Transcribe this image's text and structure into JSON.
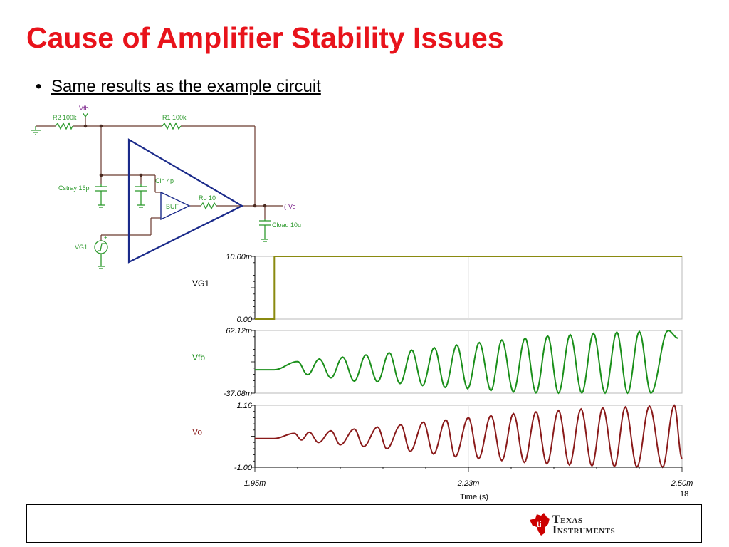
{
  "slide": {
    "title": "Cause of Amplifier Stability Issues",
    "bullet": "Same results as the example circuit",
    "page_number": "18"
  },
  "schematic": {
    "vfb_label": "Vfb",
    "r2_label": "R2 100k",
    "r1_label": "R1 100k",
    "cin_label": "Cin 4p",
    "cstray_label": "Cstray 16p",
    "ro_label": "Ro 10",
    "buf_label": "BUF",
    "vo_label": "Vo",
    "cload_label": "Cload 10u",
    "vg1_label": "VG1",
    "plus_sign": "+",
    "colors": {
      "wire": "#6b3a2e",
      "component": "#2e9a2e",
      "amp": "#1a2a8a",
      "label": "#2e9a2e",
      "net": "#7a1f8a"
    }
  },
  "chart_data": {
    "type": "line",
    "x": {
      "label": "Time (s)",
      "ticks": [
        "1.95m",
        "2.23m",
        "2.50m"
      ],
      "range": [
        1.95,
        2.5
      ]
    },
    "panels": [
      {
        "name": "VG1",
        "color": "#8a8a10",
        "ymax_label": "10.00m",
        "ymin_label": "0.00",
        "ylim": [
          0,
          10.0
        ],
        "shape": "step",
        "step_at": 1.975,
        "low": 0.0,
        "high": 10.0
      },
      {
        "name": "Vfb",
        "color": "#1a8f1a",
        "ymax_label": "62.12m",
        "ymin_label": "-37.08m",
        "ylim": [
          -37.08,
          62.12
        ],
        "shape": "growing-oscillation",
        "start_at": 1.975,
        "baseline": 0.0,
        "peaks": [
          {
            "t": 2.005,
            "v": 13.0
          },
          {
            "t": 2.018,
            "v": -8.0
          },
          {
            "t": 2.033,
            "v": 17.0
          },
          {
            "t": 2.048,
            "v": -13.0
          },
          {
            "t": 2.063,
            "v": 20.0
          },
          {
            "t": 2.078,
            "v": -18.0
          },
          {
            "t": 2.093,
            "v": 23.5
          },
          {
            "t": 2.108,
            "v": -19.0
          },
          {
            "t": 2.123,
            "v": 27.0
          },
          {
            "t": 2.137,
            "v": -22.0
          },
          {
            "t": 2.152,
            "v": 31.0
          },
          {
            "t": 2.166,
            "v": -25.0
          },
          {
            "t": 2.181,
            "v": 35.0
          },
          {
            "t": 2.195,
            "v": -28.0
          },
          {
            "t": 2.21,
            "v": 39.0
          },
          {
            "t": 2.224,
            "v": -30.0
          },
          {
            "t": 2.239,
            "v": 43.0
          },
          {
            "t": 2.254,
            "v": -33.0
          },
          {
            "t": 2.268,
            "v": 47.0
          },
          {
            "t": 2.283,
            "v": -35.0
          },
          {
            "t": 2.298,
            "v": 50.0
          },
          {
            "t": 2.312,
            "v": -36.5
          },
          {
            "t": 2.327,
            "v": 53.5
          },
          {
            "t": 2.341,
            "v": -37.0
          },
          {
            "t": 2.356,
            "v": 55.5
          },
          {
            "t": 2.371,
            "v": -36.8
          },
          {
            "t": 2.386,
            "v": 57.5
          },
          {
            "t": 2.401,
            "v": -37.0
          },
          {
            "t": 2.416,
            "v": 59.5
          },
          {
            "t": 2.43,
            "v": -37.0
          },
          {
            "t": 2.445,
            "v": 60.5
          },
          {
            "t": 2.46,
            "v": -37.08
          },
          {
            "t": 2.482,
            "v": 62.12
          },
          {
            "t": 2.495,
            "v": 50.0
          }
        ]
      },
      {
        "name": "Vo",
        "color": "#8a1a1a",
        "ymax_label": "1.16",
        "ymin_label": "-1.00",
        "ylim": [
          -1.0,
          1.16
        ],
        "shape": "growing-oscillation",
        "start_at": 1.975,
        "baseline": 0.0,
        "peaks": [
          {
            "t": 2.001,
            "v": 0.18
          },
          {
            "t": 2.01,
            "v": -0.05
          },
          {
            "t": 2.02,
            "v": 0.22
          },
          {
            "t": 2.032,
            "v": -0.14
          },
          {
            "t": 2.048,
            "v": 0.27
          },
          {
            "t": 2.06,
            "v": -0.22
          },
          {
            "t": 2.078,
            "v": 0.33
          },
          {
            "t": 2.09,
            "v": -0.28
          },
          {
            "t": 2.108,
            "v": 0.4
          },
          {
            "t": 2.12,
            "v": -0.36
          },
          {
            "t": 2.138,
            "v": 0.48
          },
          {
            "t": 2.15,
            "v": -0.45
          },
          {
            "t": 2.167,
            "v": 0.57
          },
          {
            "t": 2.18,
            "v": -0.54
          },
          {
            "t": 2.196,
            "v": 0.65
          },
          {
            "t": 2.208,
            "v": -0.63
          },
          {
            "t": 2.225,
            "v": 0.73
          },
          {
            "t": 2.238,
            "v": -0.7
          },
          {
            "t": 2.254,
            "v": 0.8
          },
          {
            "t": 2.268,
            "v": -0.77
          },
          {
            "t": 2.283,
            "v": 0.87
          },
          {
            "t": 2.297,
            "v": -0.83
          },
          {
            "t": 2.312,
            "v": 0.93
          },
          {
            "t": 2.326,
            "v": -0.88
          },
          {
            "t": 2.341,
            "v": 0.98
          },
          {
            "t": 2.355,
            "v": -0.92
          },
          {
            "t": 2.37,
            "v": 1.03
          },
          {
            "t": 2.384,
            "v": -0.95
          },
          {
            "t": 2.398,
            "v": 1.07
          },
          {
            "t": 2.413,
            "v": -0.97
          },
          {
            "t": 2.427,
            "v": 1.1
          },
          {
            "t": 2.442,
            "v": -0.99
          },
          {
            "t": 2.458,
            "v": 1.13
          },
          {
            "t": 2.475,
            "v": -1.0
          },
          {
            "t": 2.49,
            "v": 1.16
          },
          {
            "t": 2.5,
            "v": -0.7
          }
        ]
      }
    ]
  },
  "logo": {
    "line1": "Texas",
    "line2": "Instruments",
    "color": "#cc0000"
  }
}
